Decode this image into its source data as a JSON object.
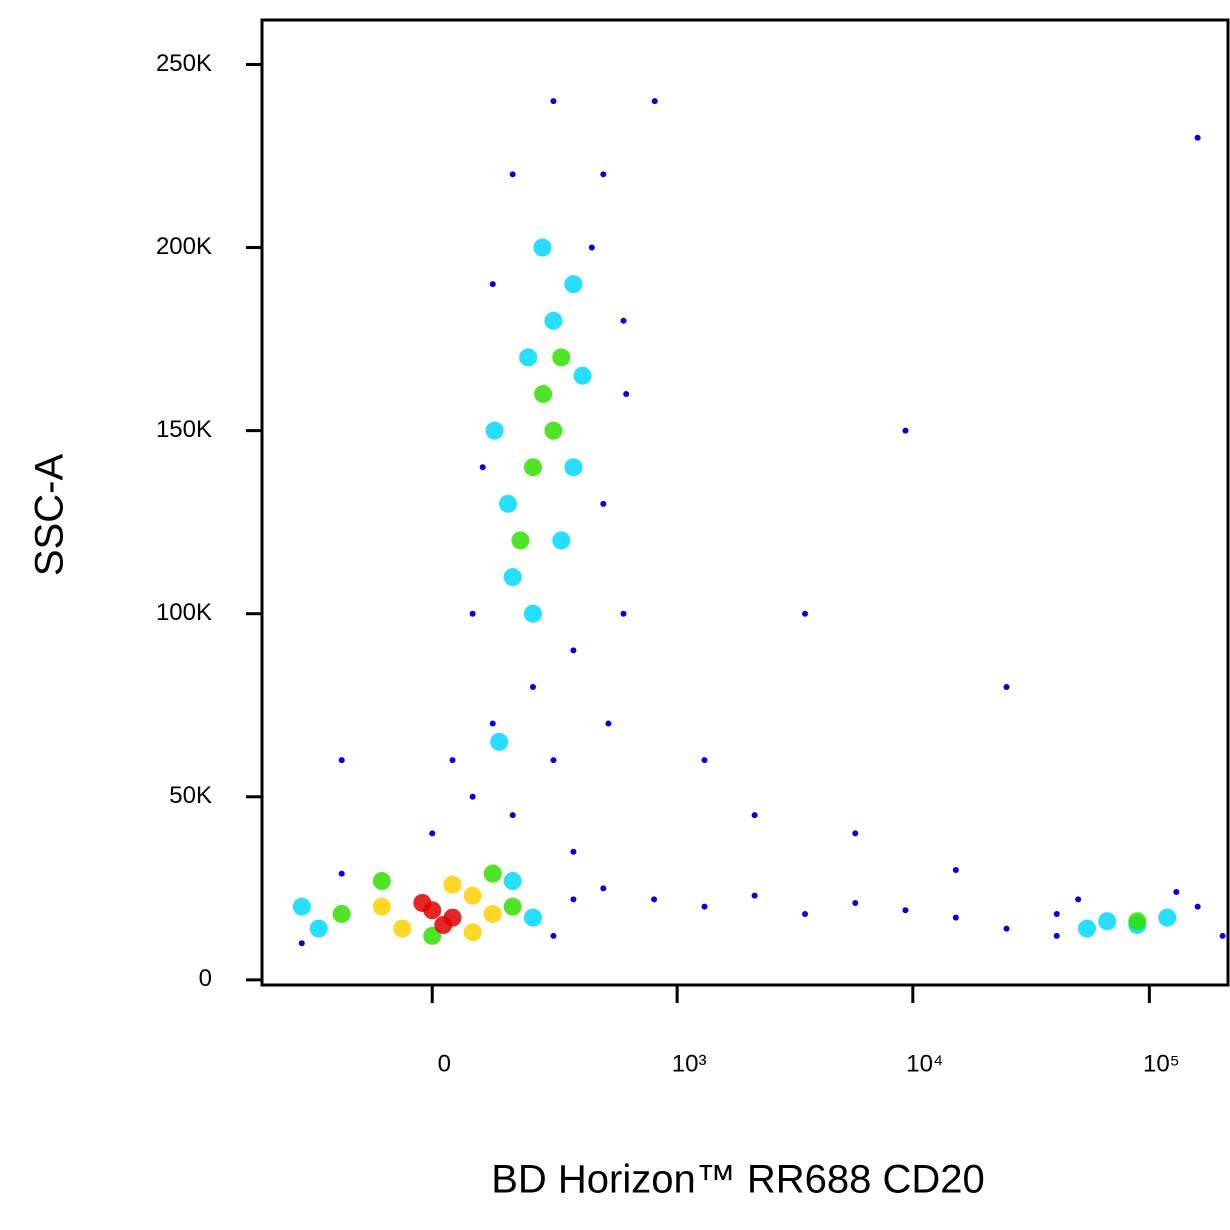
{
  "chart_data": {
    "type": "scatter",
    "x_label": "BD Horizon™ RR688 CD20",
    "y_label": "SSC-A",
    "xscale": "biexponential",
    "xlim": [
      -470,
      215000
    ],
    "ylim": [
      -1400,
      262144
    ],
    "xticks": [
      0,
      {
        "value": 1000,
        "label": "10³"
      },
      {
        "value": 10000,
        "label": "10⁴"
      },
      {
        "value": 100000,
        "label": "10⁵"
      }
    ],
    "yticks": [
      0,
      {
        "value": 50000,
        "label": "50K"
      },
      {
        "value": 100000,
        "label": "100K"
      },
      {
        "value": 150000,
        "label": "150K"
      },
      {
        "value": 200000,
        "label": "200K"
      },
      {
        "value": 250000,
        "label": "250K"
      }
    ],
    "series": [
      {
        "color": "#0000e0",
        "x": [
          75,
          95,
          116,
          161,
          274,
          474,
          584,
          474,
          584,
          344,
          116,
          75,
          0,
          161,
          274,
          213,
          37,
          344,
          474,
          795,
          1310,
          2140,
          3500,
          5710,
          9310,
          15200,
          24900,
          40600,
          160000,
          204000,
          40600,
          1310,
          3500,
          9310,
          24900,
          160000,
          5710,
          800,
          -186,
          50000,
          130000,
          -305,
          274,
          344,
          -186,
          2140,
          15200,
          600,
          420,
          500
        ],
        "values": [
          100000,
          140000,
          190000,
          220000,
          240000,
          220000,
          180000,
          130000,
          100000,
          90000,
          70000,
          50000,
          40000,
          45000,
          60000,
          80000,
          60000,
          35000,
          25000,
          22000,
          20000,
          23000,
          18000,
          21000,
          19000,
          17000,
          14000,
          12000,
          20000,
          12000,
          18000,
          60000,
          100000,
          150000,
          80000,
          230000,
          40000,
          240000,
          60000,
          22000,
          24000,
          10000,
          12000,
          22000,
          29000,
          45000,
          30000,
          160000,
          200000,
          70000
        ]
      },
      {
        "color": "#00d8ff",
        "x": [
          161,
          213,
          274,
          344,
          150,
          344,
          240,
          120,
          300,
          200,
          -305,
          213,
          -250,
          161,
          66300,
          88900,
          119000,
          54500,
          130,
          380
        ],
        "values": [
          110000,
          100000,
          180000,
          190000,
          130000,
          140000,
          200000,
          150000,
          120000,
          170000,
          20000,
          17000,
          14000,
          27000,
          16000,
          15000,
          17000,
          14000,
          65000,
          165000
        ]
      },
      {
        "color": "#30e000",
        "x": [
          -186,
          161,
          -95,
          116,
          0,
          274,
          213,
          242,
          180,
          300,
          88900
        ],
        "values": [
          18000,
          20000,
          27000,
          29000,
          12000,
          150000,
          140000,
          160000,
          120000,
          170000,
          16000
        ]
      },
      {
        "color": "#ffd000",
        "x": [
          -95,
          75,
          116,
          -55,
          37,
          75
        ],
        "values": [
          20000,
          23000,
          18000,
          14000,
          26000,
          13000
        ]
      },
      {
        "color": "#e00000",
        "x": [
          0,
          37,
          -18,
          20
        ],
        "values": [
          19000,
          17000,
          21000,
          15000
        ]
      }
    ]
  }
}
